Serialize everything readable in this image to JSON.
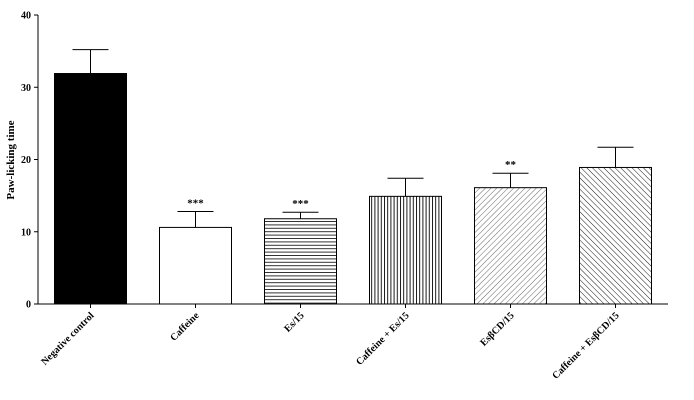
{
  "chart_data": {
    "type": "bar",
    "title": "",
    "xlabel": "",
    "ylabel": "Paw-licking time",
    "ylim": [
      0,
      40
    ],
    "yticks": [
      0,
      10,
      20,
      30,
      40
    ],
    "grid": false,
    "legend": "none",
    "categories": [
      "Negative control",
      "Caffeine",
      "Es/15",
      "Caffeine + Es/15",
      "EsβCD/15",
      "Caffeine + EsβCD/15"
    ],
    "values": [
      31.9,
      10.6,
      11.8,
      14.9,
      16.1,
      18.9
    ],
    "errors": [
      3.3,
      2.2,
      0.9,
      2.5,
      2.0,
      2.8
    ],
    "significance": [
      "",
      "***",
      "***",
      "",
      "**",
      ""
    ],
    "fill_patterns": [
      "solid",
      "none",
      "horizontal",
      "vertical",
      "diagonal-right",
      "diagonal-left"
    ],
    "colors": {
      "bar_stroke": "#000000",
      "solid_fill": "#000000",
      "hatch": "#000000"
    }
  }
}
